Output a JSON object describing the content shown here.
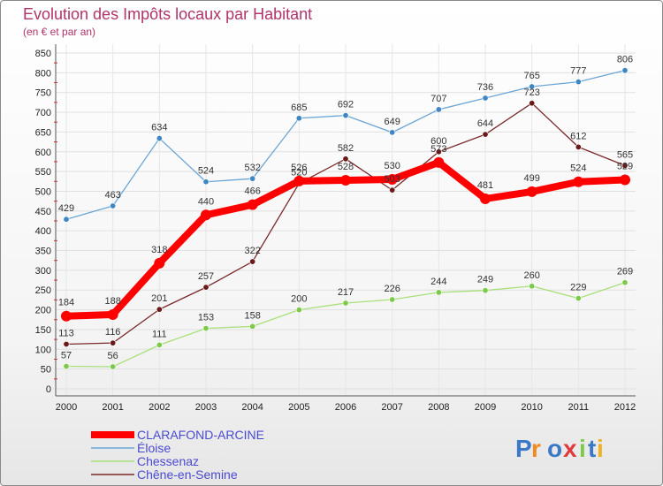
{
  "chart_data": {
    "type": "line",
    "title": "Evolution des Impôts locaux par Habitant",
    "subtitle": "(en € et par an)",
    "xlabel": "",
    "ylabel": "",
    "x": [
      "2000",
      "2001",
      "2002",
      "2003",
      "2004",
      "2005",
      "2006",
      "2007",
      "2008",
      "2009",
      "2010",
      "2011",
      "2012"
    ],
    "ylim": [
      0,
      850
    ],
    "yticks": [
      0,
      50,
      100,
      150,
      200,
      250,
      300,
      350,
      400,
      450,
      500,
      550,
      600,
      650,
      700,
      750,
      800,
      850
    ],
    "grid": true,
    "legend_position": "bottom-left",
    "series": [
      {
        "name": "Éloise",
        "color": "#6aa5d6",
        "marker": "#3f86c4",
        "width": 1.3,
        "values": [
          429,
          463,
          634,
          524,
          532,
          685,
          692,
          649,
          707,
          736,
          765,
          777,
          806
        ]
      },
      {
        "name": "Chessenaz",
        "color": "#a8e07a",
        "marker": "#7dc94a",
        "width": 1.3,
        "values": [
          57,
          56,
          111,
          153,
          158,
          200,
          217,
          226,
          244,
          249,
          260,
          229,
          269
        ]
      },
      {
        "name": "Chêne-en-Semine",
        "color": "#7a2a2a",
        "marker": "#6a1a1a",
        "width": 1.3,
        "values": [
          113,
          116,
          201,
          257,
          322,
          520,
          582,
          503,
          600,
          644,
          723,
          612,
          565
        ]
      },
      {
        "name": "CLARAFOND-ARCINE",
        "color": "#ff0000",
        "marker": "#ff0000",
        "width": 8,
        "values": [
          184,
          188,
          318,
          440,
          466,
          526,
          528,
          530,
          573,
          481,
          499,
          524,
          529
        ]
      }
    ],
    "legend_order": [
      "CLARAFOND-ARCINE",
      "Éloise",
      "Chessenaz",
      "Chêne-en-Semine"
    ]
  },
  "logo": {
    "text": "Proxiti"
  }
}
